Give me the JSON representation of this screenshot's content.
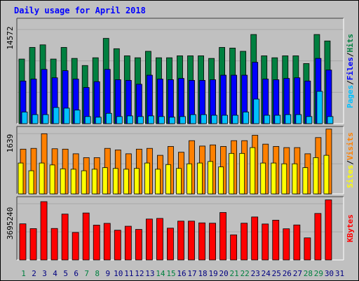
{
  "title": "Daily usage for April 2018",
  "colors": {
    "background": "#c0c0c0",
    "title": "#0000ff",
    "hits": "#008040",
    "files": "#0000ff",
    "pages": "#00c0ff",
    "visits": "#ff8000",
    "sites": "#ffff00",
    "kbytes": "#ff0000",
    "weekday_label": "#000080",
    "weekend_label": "#008040"
  },
  "chart_data": [
    {
      "type": "bar",
      "panel": "hits-files-pages",
      "categories": [
        "1",
        "2",
        "3",
        "4",
        "5",
        "6",
        "7",
        "8",
        "9",
        "10",
        "11",
        "12",
        "13",
        "14",
        "15",
        "16",
        "17",
        "18",
        "19",
        "20",
        "21",
        "22",
        "23",
        "24",
        "25",
        "26",
        "27",
        "28",
        "29",
        "30",
        "31"
      ],
      "weekend_days": [
        "1",
        "7",
        "8",
        "14",
        "15",
        "21",
        "22",
        "28",
        "29"
      ],
      "y_tick_label": "14572",
      "ymax": 14572,
      "legend": [
        {
          "label": "Pages",
          "color": "#00c0ff"
        },
        {
          "label": "Files",
          "color": "#0000ff"
        },
        {
          "label": "Hits",
          "color": "#008040"
        }
      ],
      "series": [
        {
          "name": "Hits",
          "values": [
            10000,
            11800,
            12200,
            10000,
            11800,
            10100,
            9000,
            10200,
            13200,
            11600,
            10500,
            10200,
            11200,
            10200,
            10200,
            10500,
            10500,
            10500,
            10100,
            11800,
            11700,
            11200,
            13800,
            10500,
            10200,
            10500,
            10500,
            9300,
            13800,
            12800,
            0
          ]
        },
        {
          "name": "Files",
          "values": [
            6600,
            6900,
            8400,
            7100,
            8200,
            6900,
            5600,
            6500,
            8400,
            6800,
            6700,
            6100,
            7500,
            6900,
            6800,
            7000,
            6700,
            6700,
            6800,
            7500,
            7500,
            7500,
            9500,
            6900,
            6800,
            7000,
            7100,
            6600,
            10100,
            8300,
            0
          ]
        },
        {
          "name": "Pages",
          "values": [
            1800,
            1400,
            1400,
            2500,
            2400,
            2100,
            1100,
            1000,
            1600,
            1100,
            1200,
            1100,
            1200,
            1100,
            1000,
            1100,
            1400,
            1400,
            1300,
            1300,
            1300,
            1800,
            3800,
            1300,
            1300,
            1400,
            1400,
            1100,
            5000,
            1100,
            0
          ]
        }
      ]
    },
    {
      "type": "bar",
      "panel": "visits-sites",
      "categories": [
        "1",
        "2",
        "3",
        "4",
        "5",
        "6",
        "7",
        "8",
        "9",
        "10",
        "11",
        "12",
        "13",
        "14",
        "15",
        "16",
        "17",
        "18",
        "19",
        "20",
        "21",
        "22",
        "23",
        "24",
        "25",
        "26",
        "27",
        "28",
        "29",
        "30",
        "31"
      ],
      "y_tick_label": "1639",
      "ymax": 1639,
      "legend": [
        {
          "label": "Sites",
          "color": "#ffff00"
        },
        {
          "label": "Visits",
          "color": "#ff8000"
        }
      ],
      "series": [
        {
          "name": "Visits",
          "values": [
            1160,
            1180,
            1560,
            1170,
            1160,
            1040,
            940,
            940,
            1180,
            1140,
            1040,
            1160,
            1180,
            1000,
            1230,
            1080,
            1380,
            1240,
            1270,
            1230,
            1380,
            1380,
            1520,
            1290,
            1230,
            1200,
            1200,
            1040,
            1460,
            1680,
            0
          ]
        },
        {
          "name": "Sites",
          "values": [
            800,
            600,
            800,
            750,
            650,
            640,
            600,
            640,
            680,
            660,
            640,
            660,
            800,
            640,
            760,
            660,
            780,
            800,
            840,
            700,
            1050,
            1050,
            1200,
            800,
            800,
            780,
            780,
            680,
            940,
            1000,
            0
          ]
        }
      ]
    },
    {
      "type": "bar",
      "panel": "kbytes",
      "categories": [
        "1",
        "2",
        "3",
        "4",
        "5",
        "6",
        "7",
        "8",
        "9",
        "10",
        "11",
        "12",
        "13",
        "14",
        "15",
        "16",
        "17",
        "18",
        "19",
        "20",
        "21",
        "22",
        "23",
        "24",
        "25",
        "26",
        "27",
        "28",
        "29",
        "30",
        "31"
      ],
      "y_tick_label": "3695240",
      "ymax": 3695240,
      "legend": [
        {
          "label": "KBytes",
          "color": "#ff0000"
        }
      ],
      "series": [
        {
          "name": "KBytes",
          "values": [
            2260000,
            1960000,
            3650000,
            1970000,
            2870000,
            1720000,
            2940000,
            2180000,
            2290000,
            1860000,
            2110000,
            1910000,
            2560000,
            2600000,
            1990000,
            2430000,
            2430000,
            2320000,
            2300000,
            2970000,
            1570000,
            2300000,
            2690000,
            2250000,
            2490000,
            1950000,
            2190000,
            1380000,
            2910000,
            3760000,
            0
          ]
        }
      ]
    }
  ]
}
